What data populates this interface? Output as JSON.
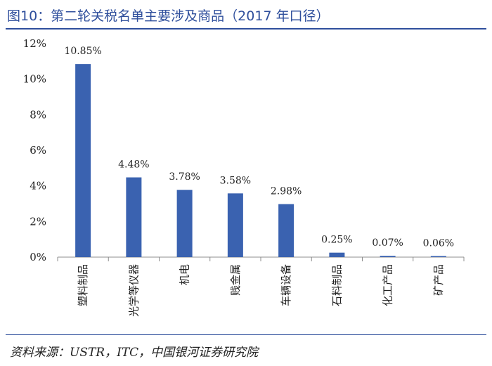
{
  "figure": {
    "title": "图10：第二轮关税名单主要涉及商品（2017 年口径）",
    "source": "资料来源：USTR，ITC，中国银河证券研究院"
  },
  "colors": {
    "bar": "#3a62b0",
    "title": "#2f4f9c",
    "axis": "#8c8c8c",
    "text": "#222222"
  },
  "chart_data": {
    "type": "bar",
    "title": "第二轮关税名单主要涉及商品（2017 年口径）",
    "xlabel": "",
    "ylabel": "",
    "ylim": [
      0,
      12
    ],
    "y_ticks": [
      "0%",
      "2%",
      "4%",
      "6%",
      "8%",
      "10%",
      "12%"
    ],
    "y_tick_values": [
      0,
      2,
      4,
      6,
      8,
      10,
      12
    ],
    "grid": false,
    "categories": [
      "塑料制品",
      "光学等仪器",
      "机电",
      "贱金属",
      "车辆设备",
      "石料制品",
      "化工产品",
      "矿产品"
    ],
    "values": [
      10.85,
      4.48,
      3.78,
      3.58,
      2.98,
      0.25,
      0.07,
      0.06
    ],
    "data_labels": [
      "10.85%",
      "4.48%",
      "3.78%",
      "3.58%",
      "2.98%",
      "0.25%",
      "0.07%",
      "0.06%"
    ]
  }
}
